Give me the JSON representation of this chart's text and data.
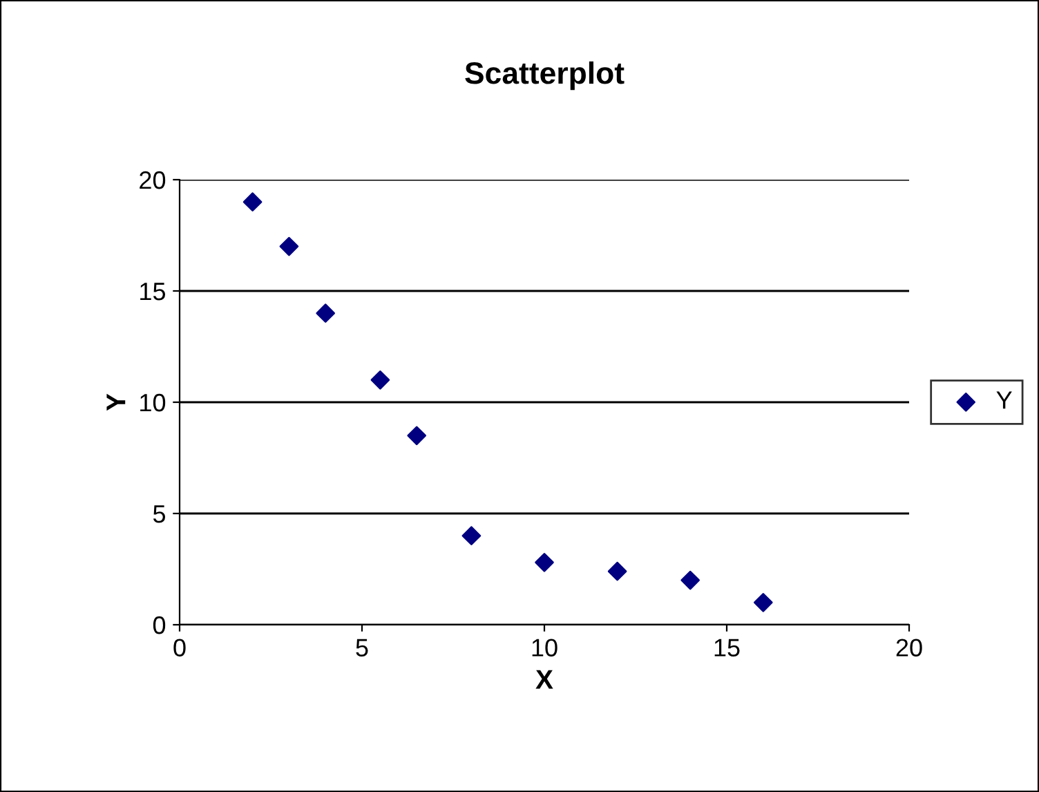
{
  "chart_data": {
    "type": "scatter",
    "title": "Scatterplot",
    "xlabel": "X",
    "ylabel": "Y",
    "x": [
      2,
      3,
      4,
      5.5,
      6.5,
      8,
      10,
      12,
      14,
      16
    ],
    "series": [
      {
        "name": "Y",
        "color": "#000080",
        "values": [
          19,
          17,
          14,
          11,
          8.5,
          4,
          2.8,
          2.4,
          2,
          1
        ]
      }
    ],
    "xlim": [
      0,
      20
    ],
    "ylim": [
      0,
      20
    ],
    "xticks": [
      0,
      5,
      10,
      15,
      20
    ],
    "yticks": [
      0,
      5,
      10,
      15,
      20
    ],
    "grid": "y",
    "legend": "right",
    "marker": "diamond"
  }
}
